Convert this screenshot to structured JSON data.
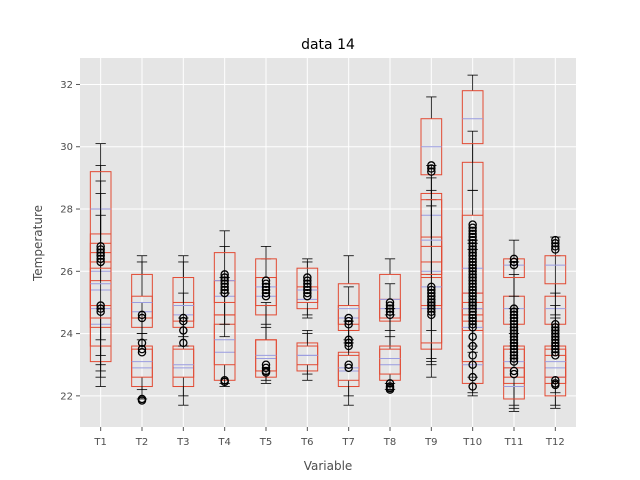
{
  "chart_data": {
    "type": "box",
    "title": "data 14",
    "xlabel": "Variable",
    "ylabel": "Temperature",
    "ylim": [
      21,
      32.85
    ],
    "yticks": [
      22,
      24,
      26,
      28,
      30,
      32
    ],
    "grid": true,
    "style": "ggplot",
    "colors": {
      "background": "#e5e5e5",
      "grid": "#ffffff",
      "box": "#e24a33",
      "median": "#9a9ce0",
      "whisker": "#000000",
      "flier": "#000000"
    },
    "categories": [
      "T1",
      "T2",
      "T3",
      "T4",
      "T5",
      "T6",
      "T7",
      "T8",
      "T9",
      "T10",
      "T11",
      "T12"
    ],
    "series": [
      {
        "category": "T1",
        "boxes": [
          {
            "q1": 24.9,
            "med": 26.0,
            "q3": 27.2,
            "lo": 23.0,
            "hi": 29.4
          },
          {
            "q1": 23.1,
            "med": 24.3,
            "q3": 25.7,
            "lo": 22.3,
            "hi": 28.0
          },
          {
            "q1": 24.2,
            "med": 25.4,
            "q3": 26.6,
            "lo": 22.6,
            "hi": 28.5
          },
          {
            "q1": 26.3,
            "med": 28.0,
            "q3": 29.2,
            "lo": 23.8,
            "hi": 30.1
          },
          {
            "q1": 23.6,
            "med": 24.8,
            "q3": 26.1,
            "lo": 22.8,
            "hi": 28.9
          },
          {
            "q1": 24.5,
            "med": 25.6,
            "q3": 26.9,
            "lo": 23.3,
            "hi": 27.8
          }
        ],
        "fliers": [
          26.8,
          26.7,
          26.6,
          26.5,
          26.4,
          26.3,
          24.9,
          24.8,
          24.7
        ]
      },
      {
        "category": "T2",
        "boxes": [
          {
            "q1": 22.3,
            "med": 22.9,
            "q3": 23.5,
            "lo": 21.9,
            "hi": 24.0
          },
          {
            "q1": 24.2,
            "med": 24.7,
            "q3": 25.2,
            "lo": 23.8,
            "hi": 26.5
          },
          {
            "q1": 22.6,
            "med": 23.1,
            "q3": 23.6,
            "lo": 22.2,
            "hi": 25.0
          },
          {
            "q1": 24.5,
            "med": 25.0,
            "q3": 25.9,
            "lo": 24.0,
            "hi": 26.3
          }
        ],
        "fliers": [
          21.9,
          21.85,
          23.7,
          23.5,
          23.4,
          24.6,
          24.5
        ]
      },
      {
        "category": "T3",
        "boxes": [
          {
            "q1": 22.3,
            "med": 22.9,
            "q3": 23.6,
            "lo": 21.7,
            "hi": 24.5
          },
          {
            "q1": 24.2,
            "med": 24.6,
            "q3": 25.0,
            "lo": 23.9,
            "hi": 26.5
          },
          {
            "q1": 22.6,
            "med": 23.0,
            "q3": 23.5,
            "lo": 22.0,
            "hi": 25.3
          },
          {
            "q1": 24.4,
            "med": 24.9,
            "q3": 25.8,
            "lo": 23.6,
            "hi": 26.3
          }
        ],
        "fliers": [
          24.5,
          24.4,
          24.1,
          23.7
        ]
      },
      {
        "category": "T4",
        "boxes": [
          {
            "q1": 22.5,
            "med": 23.4,
            "q3": 24.3,
            "lo": 22.3,
            "hi": 25.3
          },
          {
            "q1": 24.6,
            "med": 25.2,
            "q3": 25.7,
            "lo": 23.9,
            "hi": 26.8
          },
          {
            "q1": 23.0,
            "med": 23.8,
            "q3": 24.6,
            "lo": 22.4,
            "hi": 25.8
          },
          {
            "q1": 25.0,
            "med": 25.7,
            "q3": 26.6,
            "lo": 24.3,
            "hi": 27.3
          }
        ],
        "fliers": [
          25.9,
          25.8,
          25.7,
          25.6,
          25.5,
          25.4,
          25.3,
          22.5,
          22.45
        ]
      },
      {
        "category": "T5",
        "boxes": [
          {
            "q1": 22.6,
            "med": 23.2,
            "q3": 23.8,
            "lo": 22.4,
            "hi": 24.9
          },
          {
            "q1": 24.6,
            "med": 25.2,
            "q3": 25.8,
            "lo": 24.2,
            "hi": 26.4
          },
          {
            "q1": 22.8,
            "med": 23.3,
            "q3": 23.8,
            "lo": 22.5,
            "hi": 25.0
          },
          {
            "q1": 24.9,
            "med": 25.5,
            "q3": 26.4,
            "lo": 24.3,
            "hi": 26.8
          }
        ],
        "fliers": [
          25.7,
          25.6,
          25.5,
          25.4,
          25.3,
          25.2,
          23.0,
          22.9,
          22.8,
          22.75
        ]
      },
      {
        "category": "T6",
        "boxes": [
          {
            "q1": 22.8,
            "med": 23.3,
            "q3": 23.7,
            "lo": 22.5,
            "hi": 24.0
          },
          {
            "q1": 24.8,
            "med": 25.1,
            "q3": 25.5,
            "lo": 24.6,
            "hi": 26.3
          },
          {
            "q1": 23.0,
            "med": 23.3,
            "q3": 23.6,
            "lo": 22.7,
            "hi": 24.1
          },
          {
            "q1": 25.0,
            "med": 25.4,
            "q3": 26.1,
            "lo": 24.5,
            "hi": 26.4
          }
        ],
        "fliers": [
          25.8,
          25.7,
          25.6,
          25.5,
          25.4,
          25.3,
          25.2
        ]
      },
      {
        "category": "T7",
        "boxes": [
          {
            "q1": 22.3,
            "med": 22.8,
            "q3": 23.4,
            "lo": 21.7,
            "hi": 24.1
          },
          {
            "q1": 24.1,
            "med": 24.5,
            "q3": 24.9,
            "lo": 23.8,
            "hi": 25.5
          },
          {
            "q1": 22.5,
            "med": 22.9,
            "q3": 23.3,
            "lo": 22.0,
            "hi": 24.4
          },
          {
            "q1": 24.3,
            "med": 24.8,
            "q3": 25.6,
            "lo": 23.7,
            "hi": 26.5
          }
        ],
        "fliers": [
          24.5,
          24.4,
          24.3,
          23.8,
          23.7,
          23.6,
          23.0,
          22.9
        ]
      },
      {
        "category": "T8",
        "boxes": [
          {
            "q1": 22.5,
            "med": 23.0,
            "q3": 23.5,
            "lo": 22.2,
            "hi": 24.6
          },
          {
            "q1": 24.4,
            "med": 24.8,
            "q3": 25.1,
            "lo": 24.1,
            "hi": 25.6
          },
          {
            "q1": 22.7,
            "med": 23.2,
            "q3": 23.6,
            "lo": 22.4,
            "hi": 24.8
          },
          {
            "q1": 24.5,
            "med": 25.1,
            "q3": 25.9,
            "lo": 23.9,
            "hi": 26.4
          }
        ],
        "fliers": [
          25.0,
          24.9,
          24.8,
          24.7,
          24.6,
          22.4,
          22.3,
          22.25,
          22.2
        ]
      },
      {
        "category": "T9",
        "boxes": [
          {
            "q1": 26.3,
            "med": 27.8,
            "q3": 28.5,
            "lo": 23.2,
            "hi": 29.4
          },
          {
            "q1": 23.5,
            "med": 24.8,
            "q3": 25.8,
            "lo": 22.6,
            "hi": 28.3
          },
          {
            "q1": 24.9,
            "med": 26.0,
            "q3": 27.1,
            "lo": 23.1,
            "hi": 28.6
          },
          {
            "q1": 29.1,
            "med": 30.0,
            "q3": 30.9,
            "lo": 25.9,
            "hi": 31.6
          },
          {
            "q1": 23.7,
            "med": 25.5,
            "q3": 26.8,
            "lo": 23.0,
            "hi": 28.1
          },
          {
            "q1": 25.9,
            "med": 27.0,
            "q3": 28.3,
            "lo": 24.1,
            "hi": 29.0
          }
        ],
        "fliers": [
          29.4,
          29.3,
          29.2,
          25.5,
          25.4,
          25.3,
          25.2,
          25.1,
          25.0,
          24.9,
          24.8,
          24.7,
          24.6
        ]
      },
      {
        "category": "T10",
        "boxes": [
          {
            "q1": 24.1,
            "med": 25.3,
            "q3": 27.8,
            "lo": 22.1,
            "hi": 28.6
          },
          {
            "q1": 22.4,
            "med": 23.0,
            "q3": 24.8,
            "lo": 22.0,
            "hi": 27.0
          },
          {
            "q1": 24.6,
            "med": 26.1,
            "q3": 29.5,
            "lo": 23.4,
            "hi": 30.5
          },
          {
            "q1": 30.1,
            "med": 30.9,
            "q3": 31.8,
            "lo": 28.6,
            "hi": 32.3
          },
          {
            "q1": 23.1,
            "med": 24.2,
            "q3": 25.0,
            "lo": 22.6,
            "hi": 26.9
          },
          {
            "q1": 24.4,
            "med": 24.8,
            "q3": 25.3,
            "lo": 23.6,
            "hi": 26.7
          }
        ],
        "fliers": [
          27.5,
          27.4,
          27.3,
          27.2,
          27.1,
          27.0,
          26.9,
          26.8,
          26.7,
          26.6,
          26.5,
          26.4,
          26.3,
          26.2,
          26.1,
          26.0,
          25.9,
          25.8,
          25.7,
          25.6,
          25.5,
          25.4,
          25.3,
          25.2,
          25.1,
          25.0,
          24.9,
          24.8,
          24.7,
          24.6,
          24.5,
          24.4,
          24.3,
          24.2,
          23.9,
          23.6,
          23.3,
          23.0,
          22.6,
          22.3
        ]
      },
      {
        "category": "T11",
        "boxes": [
          {
            "q1": 22.4,
            "med": 22.9,
            "q3": 23.5,
            "lo": 21.5,
            "hi": 25.9
          },
          {
            "q1": 24.3,
            "med": 24.8,
            "q3": 25.2,
            "lo": 23.6,
            "hi": 26.3
          },
          {
            "q1": 22.6,
            "med": 23.1,
            "q3": 23.6,
            "lo": 21.7,
            "hi": 25.2
          },
          {
            "q1": 25.8,
            "med": 26.2,
            "q3": 26.4,
            "lo": 24.8,
            "hi": 27.0
          },
          {
            "q1": 21.9,
            "med": 22.3,
            "q3": 22.9,
            "lo": 21.6,
            "hi": 24.0
          }
        ],
        "fliers": [
          26.4,
          26.3,
          26.2,
          24.8,
          24.7,
          24.6,
          24.5,
          24.4,
          24.3,
          24.2,
          24.1,
          24.0,
          23.9,
          23.8,
          23.7,
          23.6,
          23.5,
          23.4,
          23.3,
          23.2,
          23.1,
          22.8,
          22.7
        ]
      },
      {
        "category": "T12",
        "boxes": [
          {
            "q1": 22.4,
            "med": 22.9,
            "q3": 23.5,
            "lo": 21.6,
            "hi": 24.9
          },
          {
            "q1": 24.3,
            "med": 24.8,
            "q3": 25.2,
            "lo": 23.6,
            "hi": 26.5
          },
          {
            "q1": 22.0,
            "med": 22.6,
            "q3": 23.3,
            "lo": 21.7,
            "hi": 24.5
          },
          {
            "q1": 25.6,
            "med": 26.2,
            "q3": 26.5,
            "lo": 24.6,
            "hi": 27.1
          },
          {
            "q1": 22.6,
            "med": 23.1,
            "q3": 23.6,
            "lo": 22.1,
            "hi": 25.3
          }
        ],
        "fliers": [
          27.0,
          26.9,
          26.8,
          26.7,
          24.3,
          24.2,
          24.1,
          24.0,
          23.9,
          23.8,
          23.7,
          23.6,
          23.5,
          23.4,
          23.3,
          22.5,
          22.4,
          22.35
        ]
      }
    ]
  }
}
